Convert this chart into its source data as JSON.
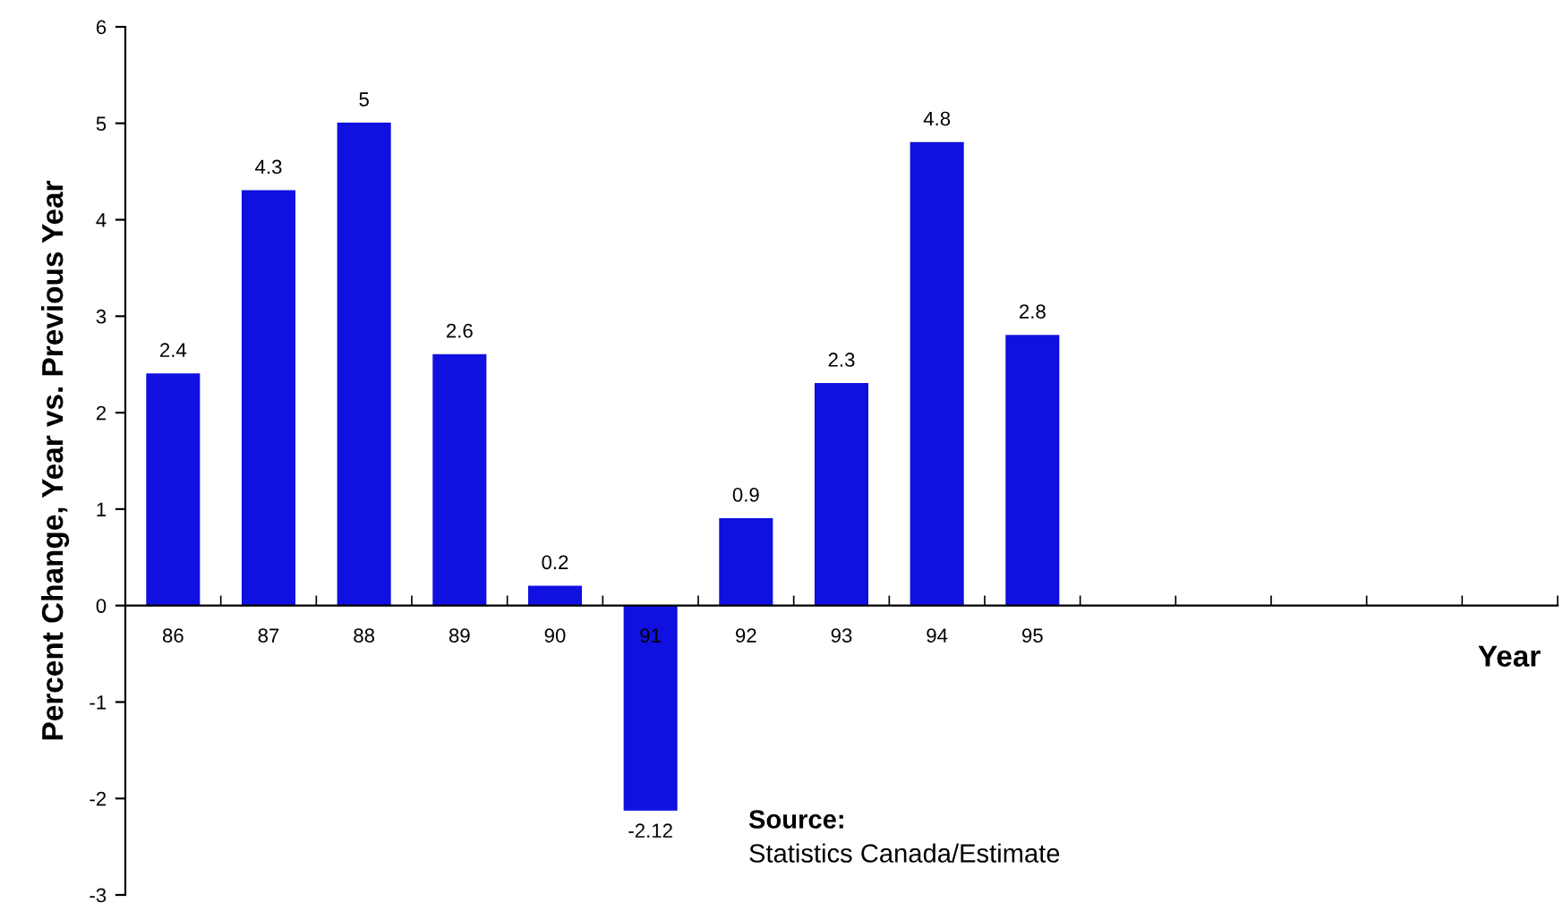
{
  "chart_data": {
    "type": "bar",
    "xlabel": "Year",
    "ylabel": "Percent Change, Year vs. Previous Year",
    "categories": [
      "86",
      "87",
      "88",
      "89",
      "90",
      "91",
      "92",
      "93",
      "94",
      "95",
      null,
      null,
      null,
      null,
      null
    ],
    "values": [
      2.4,
      4.3,
      5,
      2.6,
      0.2,
      -2.12,
      0.9,
      2.3,
      4.8,
      2.8,
      null,
      null,
      null,
      null,
      null
    ],
    "color": "#1010e0",
    "ylim": [
      -3,
      6
    ],
    "yticks": [
      -3,
      -2,
      -1,
      0,
      1,
      2,
      3,
      4,
      5,
      6
    ],
    "data_labels": true,
    "grid": false,
    "legend": false,
    "annotations": [
      "Source:",
      "Statistics Canada/Estimate"
    ]
  }
}
